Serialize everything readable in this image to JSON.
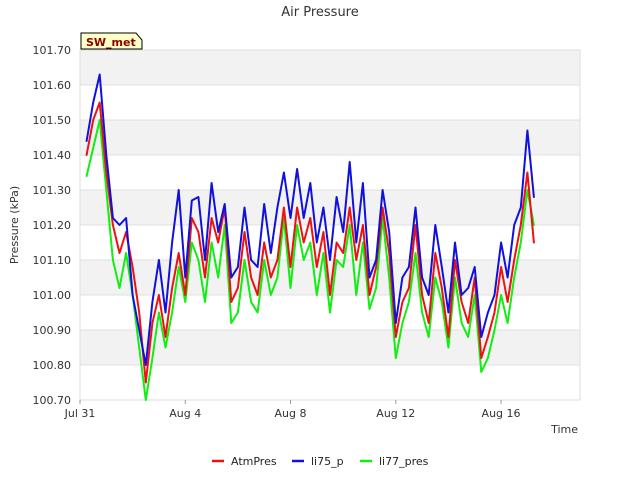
{
  "chart_data": {
    "type": "line",
    "title": "Air Pressure",
    "xlabel": "Time",
    "ylabel": "Pressure (kPa)",
    "ylim": [
      100.7,
      101.7
    ],
    "yticks": [
      "100.70",
      "100.80",
      "100.90",
      "101.00",
      "101.10",
      "101.20",
      "101.30",
      "101.40",
      "101.50",
      "101.60",
      "101.70"
    ],
    "xlim": [
      "2023-07-31",
      "2023-08-19"
    ],
    "xticks": [
      {
        "date": "2023-07-31",
        "label": "Jul 31"
      },
      {
        "date": "2023-08-04",
        "label": "Aug 4"
      },
      {
        "date": "2023-08-08",
        "label": "Aug 8"
      },
      {
        "date": "2023-08-12",
        "label": "Aug 12"
      },
      {
        "date": "2023-08-16",
        "label": "Aug 16"
      }
    ],
    "grid": true,
    "legend": "bottom",
    "badge": "SW_met",
    "x": [
      "2023-07-31T06:00",
      "2023-07-31T12:00",
      "2023-07-31T18:00",
      "2023-08-01T00:00",
      "2023-08-01T06:00",
      "2023-08-01T12:00",
      "2023-08-01T18:00",
      "2023-08-02T00:00",
      "2023-08-02T06:00",
      "2023-08-02T12:00",
      "2023-08-02T18:00",
      "2023-08-03T00:00",
      "2023-08-03T06:00",
      "2023-08-03T12:00",
      "2023-08-03T18:00",
      "2023-08-04T00:00",
      "2023-08-04T06:00",
      "2023-08-04T12:00",
      "2023-08-04T18:00",
      "2023-08-05T00:00",
      "2023-08-05T06:00",
      "2023-08-05T12:00",
      "2023-08-05T18:00",
      "2023-08-06T00:00",
      "2023-08-06T06:00",
      "2023-08-06T12:00",
      "2023-08-06T18:00",
      "2023-08-07T00:00",
      "2023-08-07T06:00",
      "2023-08-07T12:00",
      "2023-08-07T18:00",
      "2023-08-08T00:00",
      "2023-08-08T06:00",
      "2023-08-08T12:00",
      "2023-08-08T18:00",
      "2023-08-09T00:00",
      "2023-08-09T06:00",
      "2023-08-09T12:00",
      "2023-08-09T18:00",
      "2023-08-10T00:00",
      "2023-08-10T06:00",
      "2023-08-10T12:00",
      "2023-08-10T18:00",
      "2023-08-11T00:00",
      "2023-08-11T06:00",
      "2023-08-11T12:00",
      "2023-08-11T18:00",
      "2023-08-12T00:00",
      "2023-08-12T06:00",
      "2023-08-12T12:00",
      "2023-08-12T18:00",
      "2023-08-13T00:00",
      "2023-08-13T06:00",
      "2023-08-13T12:00",
      "2023-08-13T18:00",
      "2023-08-14T00:00",
      "2023-08-14T06:00",
      "2023-08-14T12:00",
      "2023-08-14T18:00",
      "2023-08-15T00:00",
      "2023-08-15T06:00",
      "2023-08-15T12:00",
      "2023-08-15T18:00",
      "2023-08-16T00:00",
      "2023-08-16T06:00",
      "2023-08-16T12:00",
      "2023-08-16T18:00",
      "2023-08-17T00:00",
      "2023-08-17T06:00"
    ],
    "series": [
      {
        "name": "AtmPres",
        "color": "#ee1111",
        "values": [
          101.4,
          101.5,
          101.55,
          101.35,
          101.2,
          101.12,
          101.18,
          101.08,
          100.95,
          100.75,
          100.92,
          101.0,
          100.88,
          101.02,
          101.12,
          101.0,
          101.22,
          101.18,
          101.05,
          101.22,
          101.15,
          101.25,
          100.98,
          101.02,
          101.18,
          101.05,
          101.0,
          101.15,
          101.05,
          101.1,
          101.25,
          101.08,
          101.25,
          101.15,
          101.22,
          101.08,
          101.18,
          101.0,
          101.15,
          101.12,
          101.25,
          101.1,
          101.2,
          101.0,
          101.08,
          101.25,
          101.12,
          100.88,
          100.98,
          101.02,
          101.2,
          101.0,
          100.92,
          101.12,
          101.02,
          100.88,
          101.1,
          100.98,
          100.92,
          101.05,
          100.82,
          100.88,
          100.95,
          101.08,
          100.98,
          101.1,
          101.2,
          101.35,
          101.15
        ]
      },
      {
        "name": "li75_p",
        "color": "#1111dd",
        "values": [
          101.44,
          101.55,
          101.63,
          101.4,
          101.22,
          101.2,
          101.22,
          101.0,
          100.9,
          100.8,
          100.98,
          101.1,
          100.95,
          101.15,
          101.3,
          101.05,
          101.27,
          101.28,
          101.1,
          101.32,
          101.18,
          101.26,
          101.05,
          101.08,
          101.25,
          101.1,
          101.08,
          101.26,
          101.12,
          101.25,
          101.35,
          101.22,
          101.36,
          101.22,
          101.32,
          101.15,
          101.25,
          101.1,
          101.28,
          101.18,
          101.38,
          101.15,
          101.32,
          101.05,
          101.1,
          101.3,
          101.18,
          100.92,
          101.05,
          101.08,
          101.25,
          101.05,
          101.0,
          101.2,
          101.08,
          100.95,
          101.15,
          101.0,
          101.02,
          101.08,
          100.88,
          100.95,
          101.0,
          101.15,
          101.05,
          101.2,
          101.25,
          101.47,
          101.28
        ]
      },
      {
        "name": "li77_pres",
        "color": "#11ee11",
        "values": [
          101.34,
          101.42,
          101.5,
          101.3,
          101.1,
          101.02,
          101.12,
          101.0,
          100.85,
          100.7,
          100.82,
          100.95,
          100.85,
          100.95,
          101.08,
          100.98,
          101.15,
          101.1,
          100.98,
          101.15,
          101.05,
          101.2,
          100.92,
          100.95,
          101.1,
          100.98,
          100.95,
          101.1,
          101.0,
          101.05,
          101.22,
          101.02,
          101.2,
          101.1,
          101.15,
          101.0,
          101.12,
          100.95,
          101.1,
          101.08,
          101.2,
          101.0,
          101.15,
          100.96,
          101.02,
          101.22,
          101.05,
          100.82,
          100.92,
          100.98,
          101.12,
          100.95,
          100.88,
          101.05,
          100.98,
          100.85,
          101.05,
          100.92,
          100.88,
          101.0,
          100.78,
          100.82,
          100.9,
          101.0,
          100.92,
          101.05,
          101.15,
          101.3,
          101.2
        ]
      }
    ]
  }
}
